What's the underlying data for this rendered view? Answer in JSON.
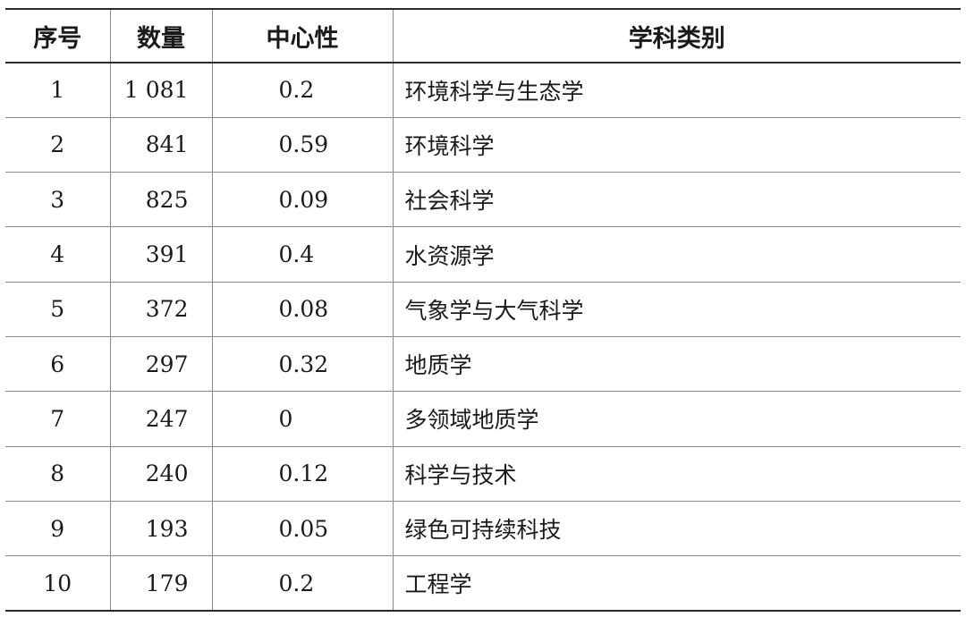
{
  "table": {
    "headers": [
      "序号",
      "数量",
      "中心性",
      "学科类别"
    ],
    "rows": [
      [
        "1",
        "1 081",
        "0.2",
        "环境科学与生态学"
      ],
      [
        "2",
        "841",
        "0.59",
        "环境科学"
      ],
      [
        "3",
        "825",
        "0.09",
        "社会科学"
      ],
      [
        "4",
        "391",
        "0.4",
        "水资源学"
      ],
      [
        "5",
        "372",
        "0.08",
        "气象学与大气科学"
      ],
      [
        "6",
        "297",
        "0.32",
        "地质学"
      ],
      [
        "7",
        "247",
        "0",
        "多领域地质学"
      ],
      [
        "8",
        "240",
        "0.12",
        "科学与技术"
      ],
      [
        "9",
        "193",
        "0.05",
        "绿色可持续科技"
      ],
      [
        "10",
        "179",
        "0.2",
        "工程学"
      ]
    ]
  }
}
